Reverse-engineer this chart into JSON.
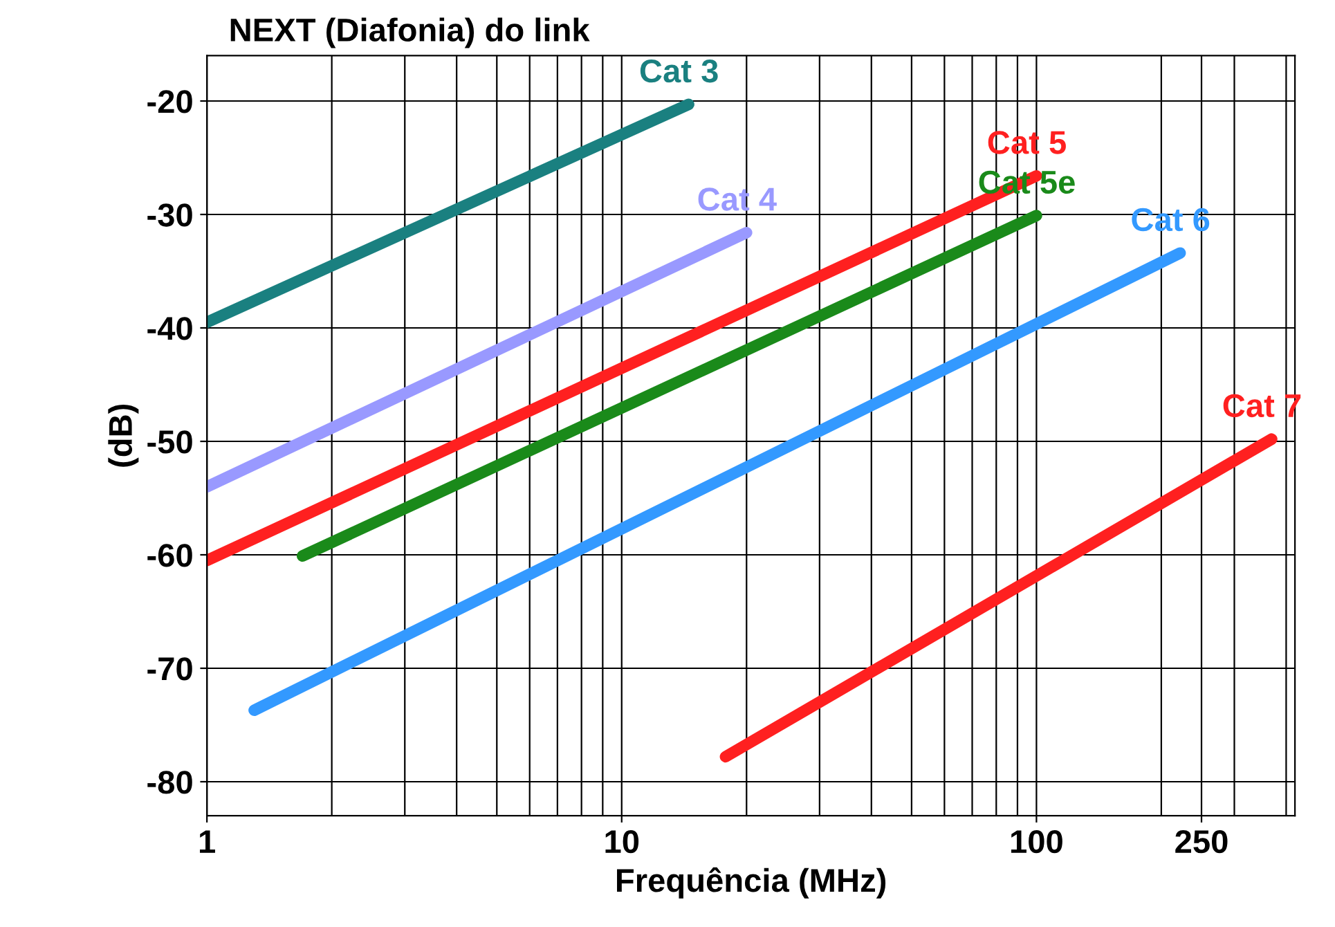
{
  "chart_data": {
    "type": "line",
    "title": "NEXT (Diafonia) do link",
    "xlabel": "Frequência (MHz)",
    "ylabel": "(dB)",
    "log": "x",
    "xlim": [
      1,
      420
    ],
    "ylim": [
      -83,
      -16
    ],
    "xticks": [
      1,
      10,
      100,
      250
    ],
    "yticks": [
      -80,
      -70,
      -60,
      -50,
      -40,
      -30,
      -20
    ],
    "grid": true,
    "legend": false,
    "series": [
      {
        "name": "Cat 3",
        "color": "#1a8080",
        "x": [
          1,
          14.5
        ],
        "values": [
          -39.5,
          -20.3
        ]
      },
      {
        "name": "Cat 4",
        "color": "#9999ff",
        "x": [
          1,
          20
        ],
        "values": [
          -54,
          -31.6
        ]
      },
      {
        "name": "Cat 5",
        "color": "#ff2020",
        "x": [
          1,
          100
        ],
        "values": [
          -60.5,
          -26.6
        ]
      },
      {
        "name": "Cat 5e",
        "color": "#1a8a1a",
        "x": [
          1.7,
          100
        ],
        "values": [
          -60.1,
          -30.1
        ]
      },
      {
        "name": "Cat 6",
        "color": "#3399ff",
        "x": [
          1.3,
          222
        ],
        "values": [
          -73.7,
          -33.4
        ]
      },
      {
        "name": "Cat 7",
        "color": "#ff2020",
        "x": [
          17.8,
          369
        ],
        "values": [
          -77.8,
          -49.8
        ]
      }
    ]
  }
}
